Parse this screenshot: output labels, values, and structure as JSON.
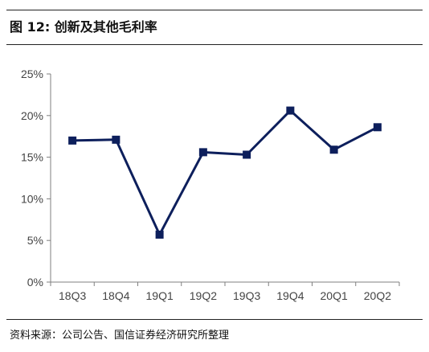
{
  "figure": {
    "title": "图 12:  创新及其他毛利率",
    "source": "资料来源：公司公告、国信证券经济研究所整理"
  },
  "chart_data": {
    "type": "line",
    "categories": [
      "18Q3",
      "18Q4",
      "19Q1",
      "19Q2",
      "19Q3",
      "19Q4",
      "20Q1",
      "20Q2"
    ],
    "series": [
      {
        "values": [
          17.0,
          17.1,
          5.7,
          15.6,
          15.3,
          20.6,
          15.9,
          18.6
        ]
      }
    ],
    "yticks": [
      "0%",
      "5%",
      "10%",
      "15%",
      "20%",
      "25%"
    ],
    "ylim": [
      0,
      25
    ],
    "grid": false,
    "legend": "none",
    "colors": {
      "line": "#0d1f5c",
      "axis": "#7f7f7f"
    }
  }
}
